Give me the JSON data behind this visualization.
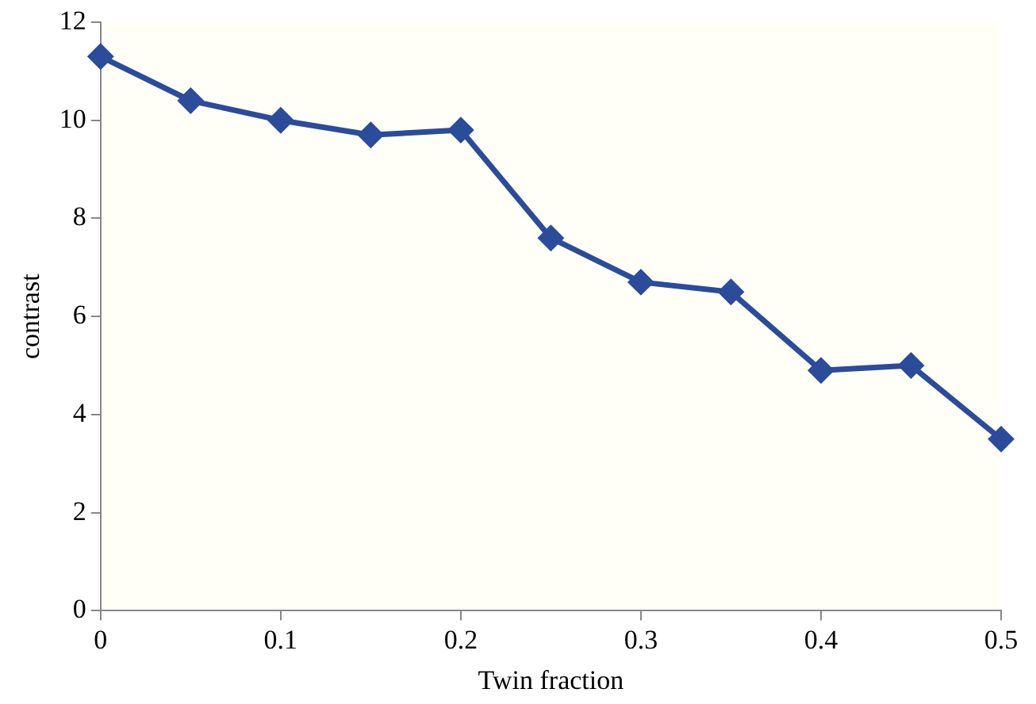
{
  "chart_data": {
    "type": "line",
    "xlabel": "Twin fraction",
    "ylabel": "contrast",
    "x": [
      0,
      0.05,
      0.1,
      0.15,
      0.2,
      0.25,
      0.3,
      0.35,
      0.4,
      0.45,
      0.5
    ],
    "series": [
      {
        "color": "#2b4b9b",
        "values": [
          11.3,
          10.4,
          10.0,
          9.7,
          9.8,
          7.6,
          6.7,
          6.5,
          4.9,
          5.0,
          3.5
        ]
      }
    ],
    "xlim": [
      0,
      0.5
    ],
    "xticks": [
      0,
      0.1,
      0.2,
      0.3,
      0.4,
      0.5
    ],
    "ylim": [
      0,
      12
    ],
    "yticks": [
      0,
      2,
      4,
      6,
      8,
      10,
      12
    ],
    "grid": false,
    "legend": false,
    "marker": "diamond",
    "line_style": "solid"
  }
}
